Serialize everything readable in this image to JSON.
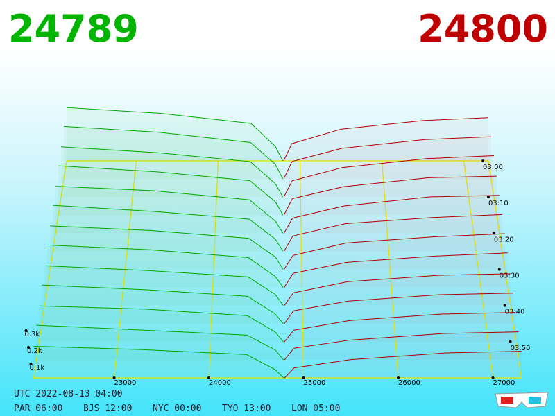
{
  "chart_data": {
    "type": "depth3d",
    "best_bid": "24789",
    "best_ask": "24800",
    "bid_color": "#00a800",
    "ask_color": "#b00000",
    "grid_color": "#e8e800",
    "xlim": [
      22150,
      27300
    ],
    "xticks": [
      23000,
      24000,
      25000,
      26000,
      27000
    ],
    "zlim": [
      0,
      60
    ],
    "zticks": [
      {
        "value": 0,
        "label": "03:00"
      },
      {
        "value": 10,
        "label": "03:10"
      },
      {
        "value": 20,
        "label": "03:20"
      },
      {
        "value": 30,
        "label": "03:30"
      },
      {
        "value": 40,
        "label": "03:40"
      },
      {
        "value": 50,
        "label": "03:50"
      }
    ],
    "yticks": [
      {
        "value": 0.1,
        "label": "0.1k"
      },
      {
        "value": 0.2,
        "label": "0.2k"
      },
      {
        "value": 0.3,
        "label": "0.3k"
      }
    ],
    "bid_prices": [
      22150,
      23300,
      24400,
      24700
    ],
    "ask_prices": [
      24900,
      25500,
      26500,
      27300
    ],
    "snapshots": [
      {
        "t": 0,
        "bids": [
          0.37,
          0.33,
          0.26,
          0.1
        ],
        "asks": [
          0.12,
          0.22,
          0.28,
          0.3
        ]
      },
      {
        "t": 5,
        "bids": [
          0.36,
          0.32,
          0.25,
          0.1
        ],
        "asks": [
          0.12,
          0.21,
          0.27,
          0.29
        ]
      },
      {
        "t": 10,
        "bids": [
          0.34,
          0.3,
          0.24,
          0.09
        ],
        "asks": [
          0.11,
          0.2,
          0.26,
          0.28
        ]
      },
      {
        "t": 15,
        "bids": [
          0.33,
          0.29,
          0.23,
          0.09
        ],
        "asks": [
          0.11,
          0.19,
          0.25,
          0.26
        ]
      },
      {
        "t": 20,
        "bids": [
          0.31,
          0.28,
          0.22,
          0.08
        ],
        "asks": [
          0.1,
          0.18,
          0.24,
          0.25
        ]
      },
      {
        "t": 25,
        "bids": [
          0.3,
          0.26,
          0.21,
          0.08
        ],
        "asks": [
          0.1,
          0.18,
          0.22,
          0.24
        ]
      },
      {
        "t": 30,
        "bids": [
          0.28,
          0.25,
          0.2,
          0.08
        ],
        "asks": [
          0.09,
          0.17,
          0.21,
          0.23
        ]
      },
      {
        "t": 35,
        "bids": [
          0.27,
          0.24,
          0.19,
          0.07
        ],
        "asks": [
          0.09,
          0.16,
          0.2,
          0.22
        ]
      },
      {
        "t": 40,
        "bids": [
          0.25,
          0.22,
          0.18,
          0.07
        ],
        "asks": [
          0.08,
          0.15,
          0.19,
          0.2
        ]
      },
      {
        "t": 45,
        "bids": [
          0.24,
          0.21,
          0.17,
          0.06
        ],
        "asks": [
          0.08,
          0.14,
          0.18,
          0.19
        ]
      },
      {
        "t": 50,
        "bids": [
          0.22,
          0.2,
          0.16,
          0.06
        ],
        "asks": [
          0.07,
          0.13,
          0.17,
          0.18
        ]
      },
      {
        "t": 55,
        "bids": [
          0.21,
          0.18,
          0.15,
          0.06
        ],
        "asks": [
          0.07,
          0.12,
          0.16,
          0.17
        ]
      },
      {
        "t": 60,
        "bids": [
          0.19,
          0.17,
          0.14,
          0.05
        ],
        "asks": [
          0.06,
          0.11,
          0.15,
          0.16
        ]
      }
    ],
    "clock": {
      "utc": "UTC 2022-08-13 04:00",
      "zones": [
        "PAR 06:00",
        "BJS 12:00",
        "NYC 00:00",
        "TYO 13:00",
        "LON 05:00"
      ]
    }
  }
}
